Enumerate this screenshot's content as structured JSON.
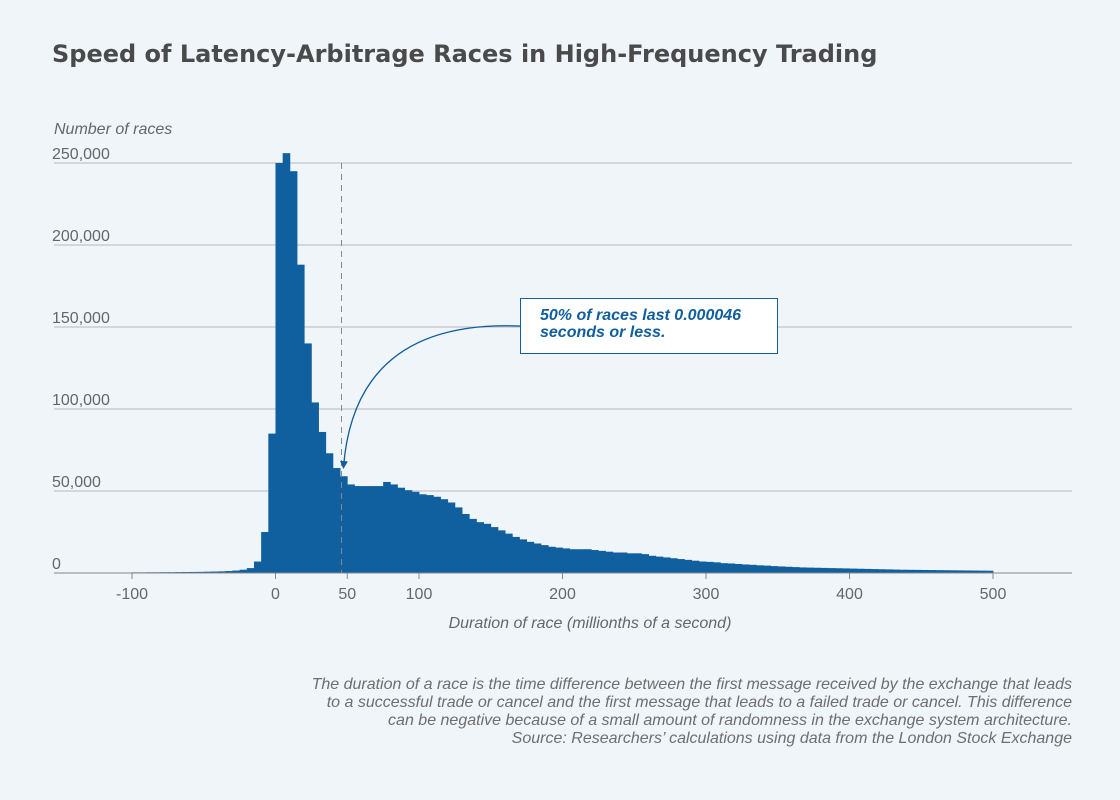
{
  "title": "Speed of Latency-Arbitrage Races in High-Frequency Trading",
  "footnote": {
    "lines": [
      "The duration of a race is the time difference between the first message received by the exchange that leads",
      "to a successful trade or cancel and the first message that leads to a failed trade or cancel. This difference",
      "can be negative because of a small amount of randomness in the exchange system architecture.",
      "Source: Researchers’ calculations using data from the London Stock Exchange"
    ]
  },
  "chart_data": {
    "type": "bar",
    "title": "Speed of Latency-Arbitrage Races in High-Frequency Trading",
    "xlabel": "Duration of race (millionths of a second)",
    "ylabel": "Number of races",
    "xlim": [
      -105,
      555
    ],
    "ylim": [
      0,
      260000
    ],
    "x_ticks": [
      {
        "value": -100,
        "label": "-100"
      },
      {
        "value": 0,
        "label": "0"
      },
      {
        "value": 50,
        "label": "50"
      },
      {
        "value": 100,
        "label": "100"
      },
      {
        "value": 200,
        "label": "200"
      },
      {
        "value": 300,
        "label": "300"
      },
      {
        "value": 400,
        "label": "400"
      },
      {
        "value": 500,
        "label": "500"
      }
    ],
    "y_ticks": [
      {
        "value": 0,
        "label": "0"
      },
      {
        "value": 50000,
        "label": "50,000"
      },
      {
        "value": 100000,
        "label": "100,000"
      },
      {
        "value": 150000,
        "label": "150,000"
      },
      {
        "value": 200000,
        "label": "200,000"
      },
      {
        "value": 250000,
        "label": "250,000"
      }
    ],
    "grid": true,
    "bar_color": "#1060a0",
    "bin_width": 5,
    "bin_starts": [
      -100,
      -95,
      -90,
      -85,
      -80,
      -75,
      -70,
      -65,
      -60,
      -55,
      -50,
      -45,
      -40,
      -35,
      -30,
      -25,
      -20,
      -15,
      -10,
      -5,
      0,
      5,
      10,
      15,
      20,
      25,
      30,
      35,
      40,
      45,
      50,
      55,
      60,
      65,
      70,
      75,
      80,
      85,
      90,
      95,
      100,
      105,
      110,
      115,
      120,
      125,
      130,
      135,
      140,
      145,
      150,
      155,
      160,
      165,
      170,
      175,
      180,
      185,
      190,
      195,
      200,
      205,
      210,
      215,
      220,
      225,
      230,
      235,
      240,
      245,
      250,
      255,
      260,
      265,
      270,
      275,
      280,
      285,
      290,
      295,
      300,
      305,
      310,
      315,
      320,
      325,
      330,
      335,
      340,
      345,
      350,
      355,
      360,
      365,
      370,
      375,
      380,
      385,
      390,
      395,
      400,
      405,
      410,
      415,
      420,
      425,
      430,
      435,
      440,
      445,
      450,
      455,
      460,
      465,
      470,
      475,
      480,
      485,
      490,
      495
    ],
    "values": [
      400,
      400,
      450,
      450,
      500,
      500,
      550,
      600,
      650,
      700,
      800,
      900,
      1000,
      1200,
      1500,
      2000,
      3000,
      7000,
      25000,
      85000,
      250000,
      256000,
      245000,
      188000,
      140000,
      104000,
      86000,
      73000,
      64000,
      59000,
      54000,
      53000,
      53000,
      53000,
      53000,
      55500,
      54000,
      52000,
      50500,
      49500,
      48000,
      47500,
      46500,
      45000,
      43000,
      40000,
      36000,
      33000,
      31000,
      30000,
      28000,
      26000,
      24000,
      22000,
      20500,
      19000,
      18000,
      17000,
      16000,
      15500,
      15000,
      14500,
      14500,
      14500,
      14000,
      13500,
      13000,
      12500,
      12500,
      12000,
      12000,
      11500,
      10500,
      10000,
      9500,
      9000,
      8500,
      8000,
      7500,
      7000,
      6800,
      6500,
      6000,
      5800,
      5500,
      5200,
      5000,
      4700,
      4500,
      4200,
      4000,
      3800,
      3600,
      3400,
      3300,
      3200,
      3100,
      3000,
      2900,
      2800,
      2700,
      2600,
      2500,
      2400,
      2300,
      2200,
      2100,
      2000,
      1950,
      1900,
      1850,
      1800,
      1750,
      1700,
      1650,
      1600,
      1550,
      1500,
      1450,
      1400
    ],
    "median_line": {
      "x": 46
    },
    "annotations": [
      {
        "text_lines": [
          "50% of races last 0.000046",
          "seconds or less."
        ],
        "points_to_x": 46
      }
    ]
  }
}
